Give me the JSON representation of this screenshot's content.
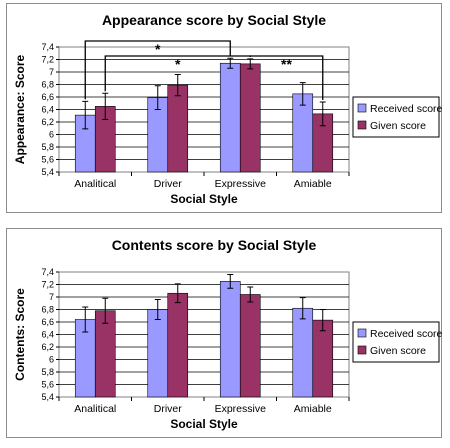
{
  "chart_data": [
    {
      "type": "bar",
      "title": "Appearance score by Social Style",
      "xlabel": "Social Style",
      "ylabel": "Appearance: Score",
      "ylim": [
        5.4,
        7.4
      ],
      "ytick_step": 0.2,
      "yticks": [
        "5,4",
        "5,6",
        "5,8",
        "6",
        "6,2",
        "6,4",
        "6,6",
        "6,8",
        "7",
        "7,2",
        "7,4"
      ],
      "categories": [
        "Analitical",
        "Driver",
        "Expressive",
        "Amiable"
      ],
      "grid": true,
      "legend": "right",
      "series": [
        {
          "name": "Received score",
          "color": "#9999ff",
          "values": [
            6.31,
            6.59,
            7.14,
            6.65
          ],
          "errors": [
            0.22,
            0.19,
            0.08,
            0.18
          ]
        },
        {
          "name": "Given score",
          "color": "#993366",
          "values": [
            6.45,
            6.79,
            7.13,
            6.33
          ],
          "errors": [
            0.21,
            0.17,
            0.08,
            0.19
          ]
        }
      ],
      "annotations": [
        {
          "text": "*",
          "from": [
            0,
            0
          ],
          "to": [
            2,
            0
          ]
        },
        {
          "text": "*",
          "from": [
            0,
            1
          ],
          "to": [
            2,
            1
          ]
        },
        {
          "text": "**",
          "from": [
            2,
            1
          ],
          "to": [
            3,
            1
          ]
        }
      ]
    },
    {
      "type": "bar",
      "title": "Contents score by Social Style",
      "xlabel": "Social Style",
      "ylabel": "Contents: Score",
      "ylim": [
        5.4,
        7.4
      ],
      "ytick_step": 0.2,
      "yticks": [
        "5,4",
        "5,6",
        "5,8",
        "6",
        "6,2",
        "6,4",
        "6,6",
        "6,8",
        "7",
        "7,2",
        "7,4"
      ],
      "categories": [
        "Analitical",
        "Driver",
        "Expressive",
        "Amiable"
      ],
      "grid": true,
      "legend": "right",
      "series": [
        {
          "name": "Received score",
          "color": "#9999ff",
          "values": [
            6.64,
            6.8,
            7.25,
            6.82
          ],
          "errors": [
            0.2,
            0.16,
            0.11,
            0.17
          ]
        },
        {
          "name": "Given score",
          "color": "#993366",
          "values": [
            6.78,
            7.06,
            7.04,
            6.63
          ],
          "errors": [
            0.2,
            0.15,
            0.12,
            0.17
          ]
        }
      ],
      "annotations": []
    }
  ]
}
